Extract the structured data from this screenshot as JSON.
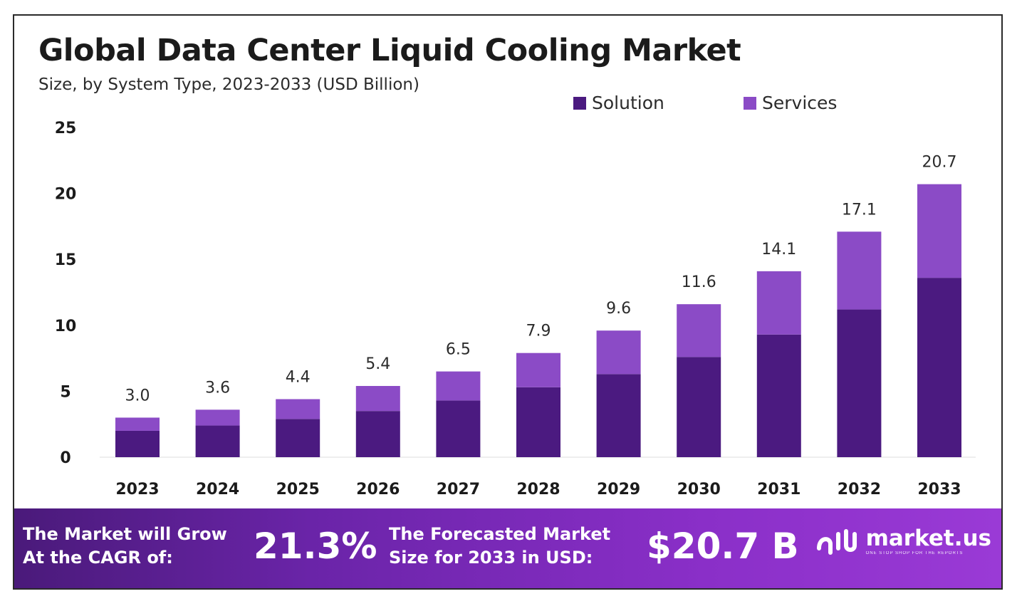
{
  "header": {
    "title": "Global Data Center Liquid Cooling Market",
    "subtitle": "Size, by System Type, 2023-2033 (USD Billion)"
  },
  "legend": {
    "solution_label": "Solution",
    "services_label": "Services",
    "position": "top-right"
  },
  "colors": {
    "solution": "#4b1a80",
    "services": "#8b4bc6",
    "footer_start": "#4a1a7a",
    "footer_end": "#9a3ad6"
  },
  "chart_data": {
    "type": "bar",
    "stacked": true,
    "categories": [
      "2023",
      "2024",
      "2025",
      "2026",
      "2027",
      "2028",
      "2029",
      "2030",
      "2031",
      "2032",
      "2033"
    ],
    "series": [
      {
        "name": "Solution",
        "values": [
          2.0,
          2.4,
          2.9,
          3.5,
          4.3,
          5.3,
          6.3,
          7.6,
          9.3,
          11.2,
          13.6
        ]
      },
      {
        "name": "Services",
        "values": [
          1.0,
          1.2,
          1.5,
          1.9,
          2.2,
          2.6,
          3.3,
          4.0,
          4.8,
          5.9,
          7.1
        ]
      }
    ],
    "totals": [
      3.0,
      3.6,
      4.4,
      5.4,
      6.5,
      7.9,
      9.6,
      11.6,
      14.1,
      17.1,
      20.7
    ],
    "total_labels": [
      "3.0",
      "3.6",
      "4.4",
      "5.4",
      "6.5",
      "7.9",
      "9.6",
      "11.6",
      "14.1",
      "17.1",
      "20.7"
    ],
    "y_ticks": [
      0,
      5,
      10,
      15,
      20,
      25
    ],
    "ylim": [
      0,
      25
    ],
    "grid": false,
    "title": "Global Data Center Liquid Cooling Market",
    "xlabel": "",
    "ylabel": ""
  },
  "footer": {
    "cagr_label_line1": "The Market will Grow",
    "cagr_label_line2": "At the CAGR of:",
    "cagr_value": "21.3%",
    "forecast_label_line1": "The Forecasted Market",
    "forecast_label_line2": "Size for 2033 in USD:",
    "forecast_value": "$20.7 B",
    "brand_name": "market.us",
    "brand_tagline": "ONE STOP SHOP FOR THE REPORTS",
    "brand_icon": "market-us-logo-icon"
  }
}
